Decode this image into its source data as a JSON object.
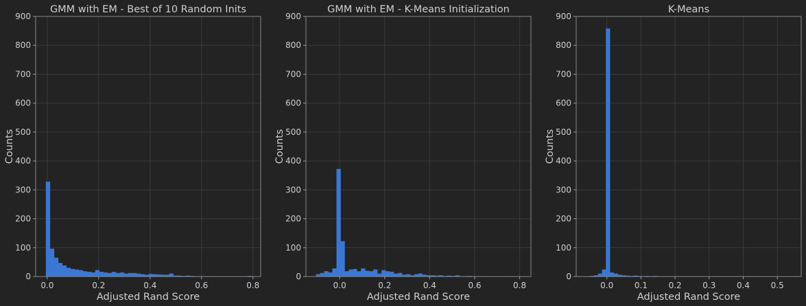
{
  "chart_data": [
    {
      "type": "bar",
      "title": "GMM with EM - Best of 10 Random Inits",
      "xlabel": "Adjusted Rand Score",
      "ylabel": "Counts",
      "ylim": [
        0,
        900
      ],
      "xlim": [
        -0.045,
        0.83
      ],
      "xticks": [
        0.0,
        0.2,
        0.4,
        0.6,
        0.8
      ],
      "xtick_labels": [
        "0.0",
        "0.2",
        "0.4",
        "0.6",
        "0.8"
      ],
      "yticks": [
        0,
        100,
        200,
        300,
        400,
        500,
        600,
        700,
        800,
        900
      ],
      "grid": true,
      "color": "#3a78d4",
      "bin_start": -0.005,
      "bin_width": 0.016,
      "values": [
        328,
        96,
        65,
        47,
        38,
        30,
        26,
        24,
        22,
        18,
        16,
        14,
        22,
        16,
        14,
        12,
        16,
        12,
        14,
        10,
        12,
        12,
        10,
        8,
        6,
        9,
        8,
        7,
        6,
        6,
        10,
        3,
        3,
        2,
        3,
        2,
        1,
        1,
        1,
        1,
        0,
        0,
        0,
        0,
        0,
        0,
        0,
        0,
        0,
        2
      ]
    },
    {
      "type": "bar",
      "title": "GMM with EM - K-Means Initialization",
      "xlabel": "Adjusted Rand Score",
      "ylabel": "Counts",
      "ylim": [
        0,
        900
      ],
      "xlim": [
        -0.15,
        0.85
      ],
      "xticks": [
        0.0,
        0.2,
        0.4,
        0.6,
        0.8
      ],
      "xtick_labels": [
        "0.0",
        "0.2",
        "0.4",
        "0.6",
        "0.8"
      ],
      "yticks": [
        0,
        100,
        200,
        300,
        400,
        500,
        600,
        700,
        800,
        900
      ],
      "grid": true,
      "color": "#3a78d4",
      "bin_start": -0.105,
      "bin_width": 0.0182,
      "values": [
        8,
        12,
        18,
        14,
        28,
        372,
        122,
        18,
        24,
        26,
        18,
        28,
        20,
        18,
        24,
        10,
        22,
        18,
        16,
        10,
        12,
        6,
        8,
        4,
        8,
        10,
        6,
        4,
        4,
        3,
        4,
        2,
        3,
        2,
        4,
        1,
        1,
        2,
        1,
        0,
        1,
        0,
        0,
        0,
        0,
        0,
        1
      ]
    },
    {
      "type": "bar",
      "title": "K-Means",
      "xlabel": "Adjusted Rand Score",
      "ylabel": "Counts",
      "ylim": [
        0,
        900
      ],
      "xlim": [
        -0.09,
        0.57
      ],
      "xticks": [
        0.0,
        0.1,
        0.2,
        0.3,
        0.4,
        0.5
      ],
      "xtick_labels": [
        "0.0",
        "0.1",
        "0.2",
        "0.3",
        "0.4",
        "0.5"
      ],
      "yticks": [
        0,
        100,
        200,
        300,
        400,
        500,
        600,
        700,
        800,
        900
      ],
      "grid": true,
      "color": "#3a78d4",
      "bin_start": -0.06,
      "bin_width": 0.0115,
      "values": [
        1,
        2,
        4,
        10,
        24,
        858,
        14,
        10,
        6,
        4,
        3,
        2,
        3,
        2,
        1,
        2,
        1,
        2,
        1,
        0,
        1,
        0,
        1,
        1,
        0,
        0,
        1,
        0,
        1,
        1,
        0,
        0,
        1,
        0,
        0,
        0,
        0,
        0,
        0,
        1,
        0,
        0,
        1,
        0,
        0,
        0,
        0,
        0,
        0,
        0
      ]
    }
  ]
}
